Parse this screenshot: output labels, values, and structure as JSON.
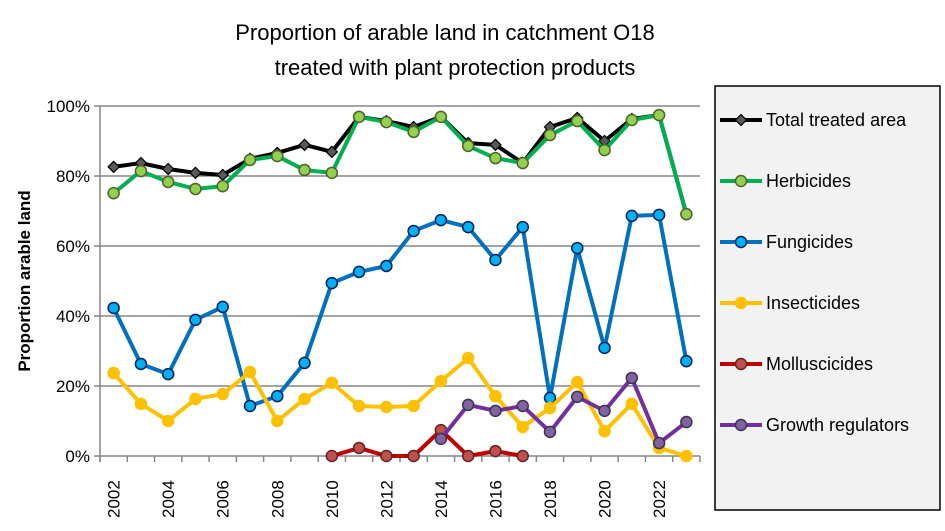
{
  "chart_data": {
    "type": "line",
    "title": [
      "Proportion of arable land in catchment O18",
      "treated with plant protection products"
    ],
    "xlabel": "",
    "ylabel": "Proportion arable land",
    "ylim": [
      0,
      100
    ],
    "yticks": [
      "0%",
      "20%",
      "40%",
      "60%",
      "80%",
      "100%"
    ],
    "xticks": [
      "2002",
      "2004",
      "2006",
      "2008",
      "2010",
      "2012",
      "2014",
      "2016",
      "2018",
      "2020",
      "2022"
    ],
    "x": [
      2002,
      2003,
      2004,
      2005,
      2006,
      2007,
      2008,
      2009,
      2010,
      2011,
      2012,
      2013,
      2014,
      2015,
      2016,
      2017,
      2018,
      2019,
      2020,
      2021,
      2022,
      2023
    ],
    "grid": "horizontal",
    "legend_position": "right",
    "series": [
      {
        "name": "Total treated area",
        "line_color": "#000000",
        "marker_color": "#595959",
        "marker_edge": "#000000",
        "marker": "diamond",
        "values": [
          82.6,
          83.7,
          82.0,
          80.9,
          80.3,
          84.9,
          86.6,
          88.9,
          86.9,
          96.9,
          95.7,
          94.0,
          96.9,
          89.4,
          88.9,
          83.7,
          94.0,
          96.6,
          90.0,
          96.3,
          97.4,
          69.1
        ]
      },
      {
        "name": "Herbicides",
        "line_color": "#00B050",
        "marker_color": "#92D050",
        "marker_edge": "#4F6228",
        "marker": "circle",
        "values": [
          75.1,
          81.4,
          78.3,
          76.3,
          77.1,
          84.6,
          85.7,
          81.7,
          80.9,
          96.9,
          95.4,
          92.6,
          96.9,
          88.6,
          85.1,
          83.7,
          91.7,
          95.7,
          87.4,
          96.0,
          97.4,
          69.1
        ]
      },
      {
        "name": "Fungicides",
        "line_color": "#0070C0",
        "marker_color": "#00B0F0",
        "marker_edge": "#002060",
        "marker": "circle",
        "values": [
          42.3,
          26.3,
          23.4,
          38.9,
          42.6,
          14.3,
          17.1,
          26.6,
          49.4,
          52.6,
          54.3,
          64.3,
          67.4,
          65.4,
          56.0,
          65.4,
          16.6,
          59.4,
          30.9,
          68.6,
          68.9,
          27.1
        ]
      },
      {
        "name": "Insecticides",
        "line_color": "#FFC000",
        "marker_color": "#FFC000",
        "marker_edge": "#FFC000",
        "marker": "circle",
        "values": [
          23.7,
          14.9,
          10.0,
          16.3,
          17.7,
          24.0,
          10.0,
          16.3,
          20.9,
          14.3,
          14.0,
          14.3,
          21.4,
          28.0,
          17.1,
          8.3,
          13.7,
          21.1,
          7.1,
          14.9,
          2.3,
          0.0
        ]
      },
      {
        "name": "Molluscicides",
        "line_color": "#C00000",
        "marker_color": "#C0504D",
        "marker_edge": "#632523",
        "marker": "circle",
        "values": [
          null,
          null,
          null,
          null,
          null,
          null,
          null,
          null,
          0.0,
          2.3,
          0.0,
          0.0,
          7.4,
          0.0,
          1.4,
          0.0,
          null,
          null,
          null,
          null,
          null,
          null
        ]
      },
      {
        "name": "Growth regulators",
        "line_color": "#7030A0",
        "marker_color": "#8064A2",
        "marker_edge": "#3F3151",
        "marker": "circle",
        "values": [
          null,
          null,
          null,
          null,
          null,
          null,
          null,
          null,
          null,
          null,
          null,
          null,
          4.9,
          14.6,
          12.9,
          14.3,
          6.9,
          16.9,
          12.9,
          22.3,
          3.7,
          9.7
        ]
      }
    ]
  }
}
